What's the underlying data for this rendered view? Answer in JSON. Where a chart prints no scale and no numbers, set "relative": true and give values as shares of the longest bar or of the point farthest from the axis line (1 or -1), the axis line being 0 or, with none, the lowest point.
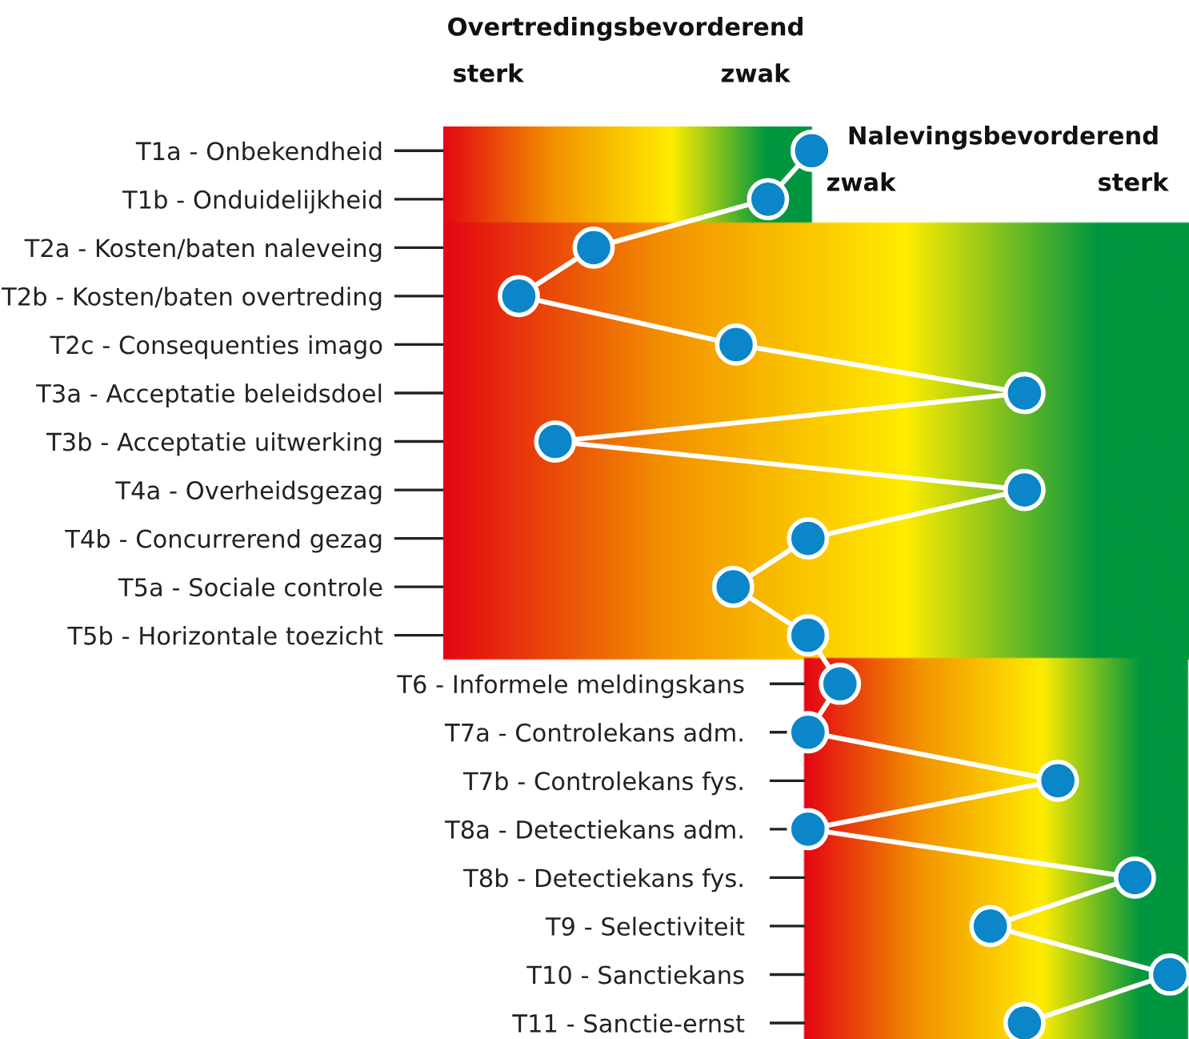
{
  "chart_data": {
    "type": "line",
    "orientation": "horizontal",
    "relative": true,
    "marker": "circle",
    "line_style": "solid",
    "legend": false,
    "categories": [
      "T1a - Onbekendheid",
      "T1b - Onduidelijkheid",
      "T2a - Kosten/baten naleveing",
      "T2b - Kosten/baten overtreding",
      "T2c - Consequenties imago",
      "T3a - Acceptatie beleidsdoel",
      "T3b - Acceptatie uitwerking",
      "T4a - Overheidsgezag",
      "T4b - Concurrerend gezag",
      "T5a - Sociale controle",
      "T5b - Horizontale toezicht",
      "T6 - Informele meldingskans",
      "T7a - Controlekans adm.",
      "T7b - Controlekans fys.",
      "T8a - Detectiekans adm.",
      "T8b - Detectiekans fys.",
      "T9 - Selectiviteit",
      "T10 - Sanctiekans",
      "T11 - Sanctie-ernst"
    ],
    "series": [
      {
        "color": "#0a86c9",
        "values": [
          0.507,
          0.447,
          0.207,
          0.104,
          0.403,
          0.8,
          0.154,
          0.8,
          0.502,
          0.399,
          0.502,
          0.546,
          0.502,
          0.846,
          0.502,
          0.952,
          0.753,
          1,
          0.8
        ]
      }
    ],
    "annotations": [
      "Overtredingsbevorderend",
      "sterk",
      "zwak",
      "Nalevingsbevorderend",
      "zwak",
      "sterk"
    ]
  }
}
